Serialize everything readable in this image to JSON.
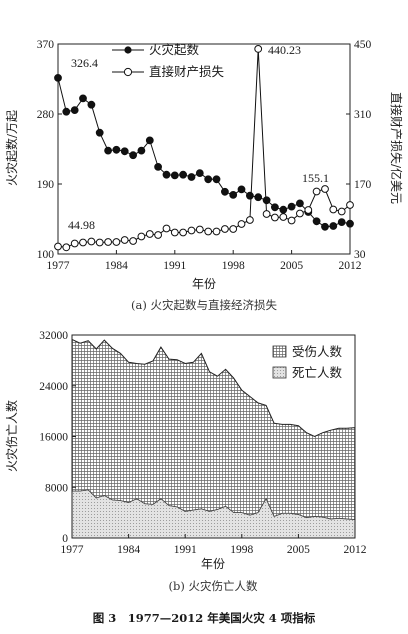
{
  "figure_title": "图 3　1977—2012 年美国火灾 4 项指标",
  "chart_data": [
    {
      "type": "line",
      "caption": "(a) 火灾起数与直接经济损失",
      "xlabel": "年份",
      "ylabel_left": "火灾起数/万起",
      "ylabel_right": "直接财产损失/亿美元",
      "xlim": [
        1977,
        2012
      ],
      "ylim_left": [
        100,
        370
      ],
      "ylim_right": [
        30,
        450
      ],
      "x_ticks": [
        "1977",
        "1984",
        "1991",
        "1998",
        "2005",
        "2012"
      ],
      "y_ticks_left": [
        "100",
        "190",
        "280",
        "370"
      ],
      "y_ticks_right": [
        "30",
        "170",
        "310",
        "450"
      ],
      "x": [
        1977,
        1978,
        1979,
        1980,
        1981,
        1982,
        1983,
        1984,
        1985,
        1986,
        1987,
        1988,
        1989,
        1990,
        1991,
        1992,
        1993,
        1994,
        1995,
        1996,
        1997,
        1998,
        1999,
        2000,
        2001,
        2002,
        2003,
        2004,
        2005,
        2006,
        2007,
        2008,
        2009,
        2010,
        2011,
        2012
      ],
      "series": [
        {
          "name": "火灾起数",
          "axis": "left",
          "marker": "filled-circle",
          "values": [
            326.4,
            283,
            285,
            300,
            292,
            256,
            233,
            234,
            232,
            227,
            233,
            246,
            212,
            202,
            201,
            202,
            199,
            204,
            196,
            196,
            180,
            176,
            183,
            175,
            173,
            169,
            160,
            157,
            161,
            165,
            154,
            142,
            135,
            136,
            141,
            139
          ]
        },
        {
          "name": "直接财产损失",
          "axis": "right",
          "marker": "open-circle",
          "values": [
            44.98,
            43.5,
            51,
            53,
            55,
            53,
            54,
            54,
            58,
            56,
            65,
            70,
            68,
            81,
            73,
            73,
            77,
            79,
            75,
            75,
            80,
            80,
            90,
            98,
            440.23,
            110,
            103,
            104,
            97,
            111,
            118,
            155.1,
            160,
            119,
            115,
            128
          ]
        }
      ],
      "annotations": [
        "326.4",
        "440.23",
        "155.1",
        "44.98"
      ],
      "legend_position": "top-center",
      "grid": false
    },
    {
      "type": "area",
      "caption": "(b) 火灾伤亡人数",
      "xlabel": "年份",
      "ylabel": "火灾伤亡人数",
      "xlim": [
        1977,
        2012
      ],
      "ylim": [
        0,
        32000
      ],
      "x_ticks": [
        "1977",
        "1984",
        "1991",
        "1998",
        "2005",
        "2012"
      ],
      "y_ticks": [
        "0",
        "8000",
        "16000",
        "24000",
        "32000"
      ],
      "x": [
        1977,
        1978,
        1979,
        1980,
        1981,
        1982,
        1983,
        1984,
        1985,
        1986,
        1987,
        1988,
        1989,
        1990,
        1991,
        1992,
        1993,
        1994,
        1995,
        1996,
        1997,
        1998,
        1999,
        2000,
        2001,
        2002,
        2003,
        2004,
        2005,
        2006,
        2007,
        2008,
        2009,
        2010,
        2011,
        2012
      ],
      "series": [
        {
          "name": "受伤人数",
          "pattern": "crosshatch",
          "values": [
            23900,
            23300,
            23500,
            23500,
            24500,
            23900,
            23200,
            22100,
            21300,
            22000,
            22600,
            23900,
            23100,
            23200,
            23300,
            23300,
            24500,
            22000,
            21000,
            21600,
            21200,
            19300,
            18700,
            17300,
            14700,
            14700,
            14000,
            14000,
            14000,
            13400,
            12600,
            13300,
            14000,
            14200,
            14300,
            14500
          ]
        },
        {
          "name": "死亡人数",
          "pattern": "dots",
          "values": [
            7400,
            7400,
            7600,
            6300,
            6700,
            6000,
            5900,
            5600,
            6200,
            5400,
            5300,
            6200,
            5100,
            4900,
            4200,
            4400,
            4600,
            4200,
            4500,
            5000,
            4000,
            4000,
            3600,
            4000,
            6200,
            3400,
            3900,
            3900,
            3700,
            3200,
            3400,
            3300,
            3000,
            3100,
            3000,
            2900
          ]
        }
      ],
      "legend_position": "top-right",
      "grid": false
    }
  ]
}
